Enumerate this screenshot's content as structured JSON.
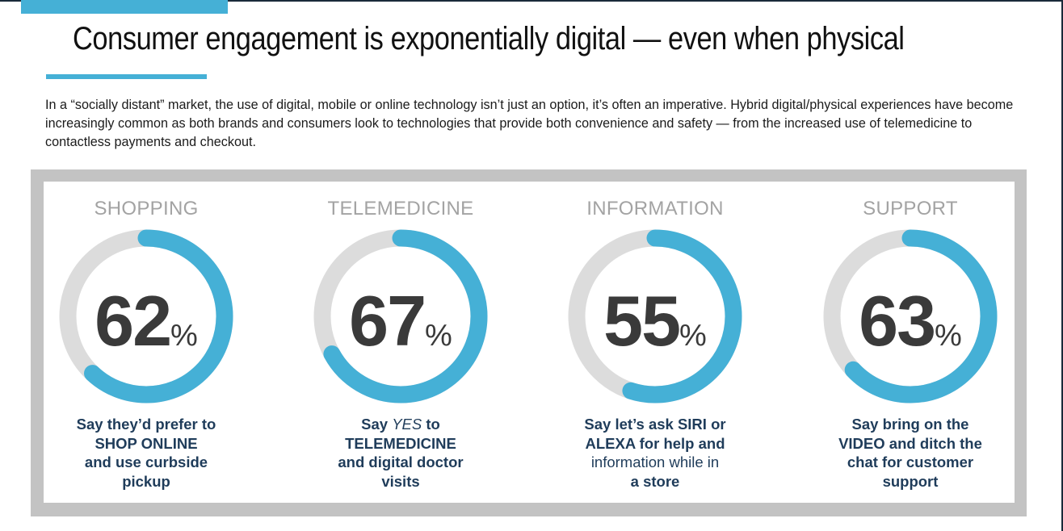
{
  "title": "Consumer engagement is exponentially digital — even when physical",
  "intro": "In a “socially distant” market, the use of digital, mobile or online technology isn’t just an option, it’s often an imperative. Hybrid digital/physical experiences have become increasingly common as both brands and consumers look to technologies that provide both convenience and safety — from the increased use of telemedicine to contactless payments and checkout.",
  "colors": {
    "accent": "#45b0d6",
    "track": "#dcdcdc",
    "panel": "#c3c3c3",
    "number": "#3a3a3a",
    "label": "#a3a3a3",
    "description": "#1f3c5a"
  },
  "chart_data": {
    "type": "pie",
    "series": [
      {
        "name": "SHOPPING",
        "value": 62,
        "unit": "%",
        "lines": [
          [
            {
              "text": "Say they’d prefer to",
              "style": "bold"
            }
          ],
          [
            {
              "text": "SHOP ONLINE",
              "style": "bold"
            }
          ],
          [
            {
              "text": "and use curbside",
              "style": "bold"
            }
          ],
          [
            {
              "text": "pickup",
              "style": "bold"
            }
          ]
        ]
      },
      {
        "name": "TELEMEDICINE",
        "value": 67,
        "unit": "%",
        "lines": [
          [
            {
              "text": "Say ",
              "style": "bold"
            },
            {
              "text": "YES",
              "style": "italic"
            },
            {
              "text": " to",
              "style": "bold"
            }
          ],
          [
            {
              "text": "TELEMEDICINE",
              "style": "bold"
            }
          ],
          [
            {
              "text": "and digital doctor",
              "style": "bold"
            }
          ],
          [
            {
              "text": "visits",
              "style": "bold"
            }
          ]
        ]
      },
      {
        "name": "INFORMATION",
        "value": 55,
        "unit": "%",
        "lines": [
          [
            {
              "text": "Say let’s ask SIRI or",
              "style": "bold"
            }
          ],
          [
            {
              "text": "ALEXA for help and",
              "style": "bold"
            }
          ],
          [
            {
              "text": "information while in",
              "style": "light"
            }
          ],
          [
            {
              "text": "a store",
              "style": "bold"
            }
          ]
        ]
      },
      {
        "name": "SUPPORT",
        "value": 63,
        "unit": "%",
        "lines": [
          [
            {
              "text": "Say bring on the",
              "style": "bold"
            }
          ],
          [
            {
              "text": "VIDEO and ditch the",
              "style": "bold"
            }
          ],
          [
            {
              "text": "chat for customer",
              "style": "bold"
            }
          ],
          [
            {
              "text": "support",
              "style": "bold"
            }
          ]
        ]
      }
    ]
  }
}
